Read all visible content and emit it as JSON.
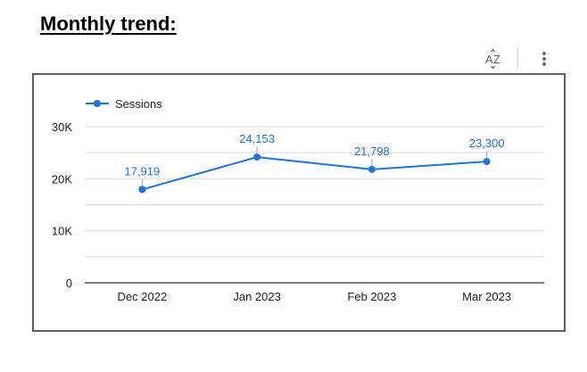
{
  "heading": "Monthly trend:",
  "toolbar": {
    "sort_icon": "sort-az-icon",
    "menu_icon": "more-vert-icon"
  },
  "colors": {
    "series": "#1a73e8",
    "data_label": "#1a73e8",
    "grid": "#dcdcdc",
    "axis": "#333333",
    "frame": "#5f5f5f"
  },
  "chart_data": {
    "type": "line",
    "title": "",
    "xlabel": "",
    "ylabel": "",
    "categories": [
      "Dec 2022",
      "Jan 2023",
      "Feb 2023",
      "Mar 2023"
    ],
    "series": [
      {
        "name": "Sessions",
        "values": [
          17919,
          24153,
          21798,
          23300
        ],
        "data_labels": [
          "17,919",
          "24,153",
          "21,798",
          "23,300"
        ]
      }
    ],
    "ylim": [
      0,
      30000
    ],
    "y_ticks": [
      0,
      10000,
      20000,
      30000
    ],
    "y_tick_labels": [
      "0",
      "10K",
      "20K",
      "30K"
    ],
    "grid": true,
    "legend_position": "top-left"
  }
}
